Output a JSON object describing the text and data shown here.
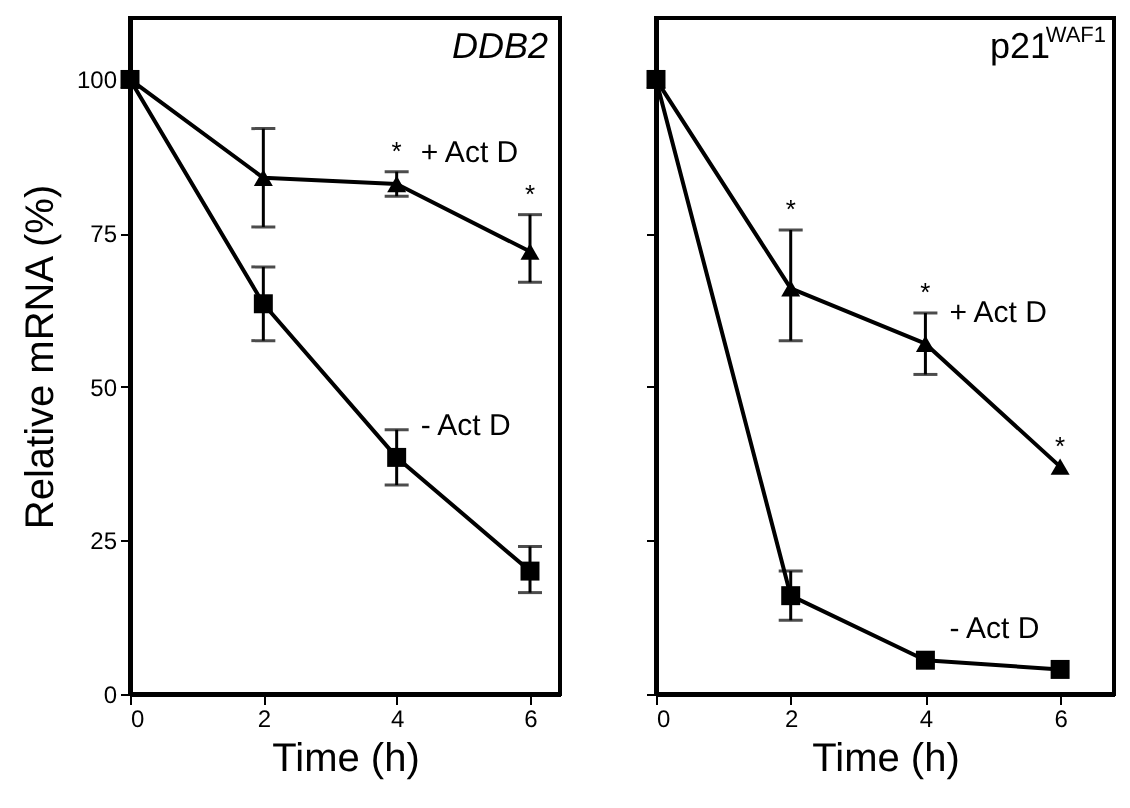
{
  "chart_data": [
    {
      "type": "line",
      "title": "DDB2",
      "xlabel": "Time (h)",
      "ylabel": "Relative mRNA (%)",
      "x": [
        0,
        2,
        4,
        6
      ],
      "xlim": [
        0,
        6.45
      ],
      "xticks": [
        0,
        2,
        4,
        6
      ],
      "ylim": [
        0,
        110
      ],
      "yticks": [
        0,
        25,
        50,
        75,
        100
      ],
      "grid": false,
      "series": [
        {
          "name": "+ Act D",
          "color": "#000000",
          "marker": "triangle",
          "values": [
            100,
            84,
            83,
            72
          ],
          "errors": [
            null,
            [
              76,
              92
            ],
            [
              81,
              85
            ],
            [
              67,
              78
            ]
          ]
        },
        {
          "name": "- Act D",
          "color": "#000000",
          "marker": "square",
          "values": [
            100,
            63.5,
            38.5,
            20
          ],
          "errors": [
            null,
            [
              57.5,
              69.5
            ],
            [
              34,
              43
            ],
            [
              16.5,
              24
            ]
          ]
        }
      ],
      "annotations": [
        {
          "text": "*",
          "x": 4,
          "y": 85
        },
        {
          "text": "*",
          "x": 6,
          "y": 78
        }
      ]
    },
    {
      "type": "line",
      "title": "p21$^{WAF1}$",
      "xlabel": "Time (h)",
      "x": [
        0,
        2,
        4,
        6
      ],
      "xlim": [
        0,
        6.8
      ],
      "xticks": [
        0,
        2,
        4,
        6
      ],
      "ylim": [
        0,
        110
      ],
      "yticks": [
        0,
        25,
        50,
        75,
        100
      ],
      "tick_labels": "x",
      "grid": false,
      "series": [
        {
          "name": "+ Act D",
          "color": "#000000",
          "marker": "triangle",
          "values": [
            100,
            66,
            57,
            37
          ],
          "errors": [
            null,
            [
              57.5,
              75.5
            ],
            [
              52,
              62
            ],
            null
          ]
        },
        {
          "name": "- Act D",
          "color": "#000000",
          "marker": "square",
          "values": [
            100,
            16,
            5.5,
            4
          ],
          "errors": [
            null,
            [
              12,
              20
            ],
            null,
            null
          ]
        }
      ],
      "annotations": [
        {
          "text": "*",
          "x": 2,
          "y": 75.5
        },
        {
          "text": "*",
          "x": 4,
          "y": 62
        },
        {
          "text": "*",
          "x": 6,
          "y": 37
        }
      ]
    }
  ]
}
